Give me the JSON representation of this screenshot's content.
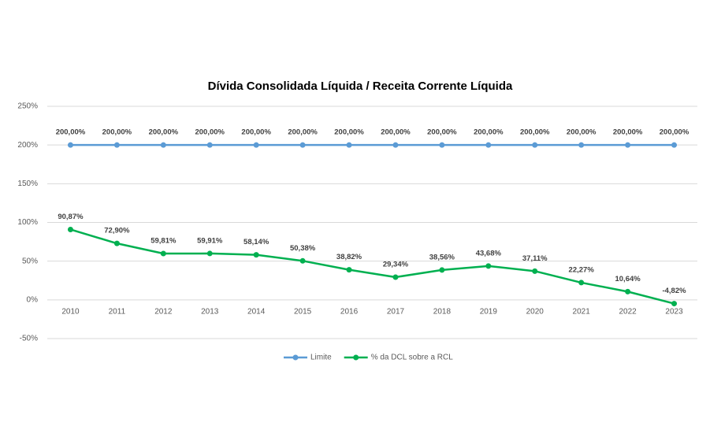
{
  "chart_data": {
    "type": "line",
    "title": "Dívida Consolidada Líquida / Receita Corrente Líquida",
    "categories": [
      "2010",
      "2011",
      "2012",
      "2013",
      "2014",
      "2015",
      "2016",
      "2017",
      "2018",
      "2019",
      "2020",
      "2021",
      "2022",
      "2023"
    ],
    "series": [
      {
        "name": "Limite",
        "color": "#5b9bd5",
        "values": [
          200,
          200,
          200,
          200,
          200,
          200,
          200,
          200,
          200,
          200,
          200,
          200,
          200,
          200
        ],
        "value_labels": [
          "200,00%",
          "200,00%",
          "200,00%",
          "200,00%",
          "200,00%",
          "200,00%",
          "200,00%",
          "200,00%",
          "200,00%",
          "200,00%",
          "200,00%",
          "200,00%",
          "200,00%",
          "200,00%"
        ]
      },
      {
        "name": "% da DCL sobre a RCL",
        "color": "#00b050",
        "values": [
          90.87,
          72.9,
          59.81,
          59.91,
          58.14,
          50.38,
          38.82,
          29.34,
          38.56,
          43.68,
          37.11,
          22.27,
          10.64,
          -4.82
        ],
        "value_labels": [
          "90,87%",
          "72,90%",
          "59,81%",
          "59,91%",
          "58,14%",
          "50,38%",
          "38,82%",
          "29,34%",
          "38,56%",
          "43,68%",
          "37,11%",
          "22,27%",
          "10,64%",
          "-4,82%"
        ]
      }
    ],
    "ylim": [
      -50,
      250
    ],
    "yticks": [
      {
        "value": -50,
        "label": "-50%"
      },
      {
        "value": 0,
        "label": "0%"
      },
      {
        "value": 50,
        "label": "50%"
      },
      {
        "value": 100,
        "label": "100%"
      },
      {
        "value": 150,
        "label": "150%"
      },
      {
        "value": 200,
        "label": "200%"
      },
      {
        "value": 250,
        "label": "250%"
      }
    ],
    "grid": true,
    "legend": "bottom"
  }
}
